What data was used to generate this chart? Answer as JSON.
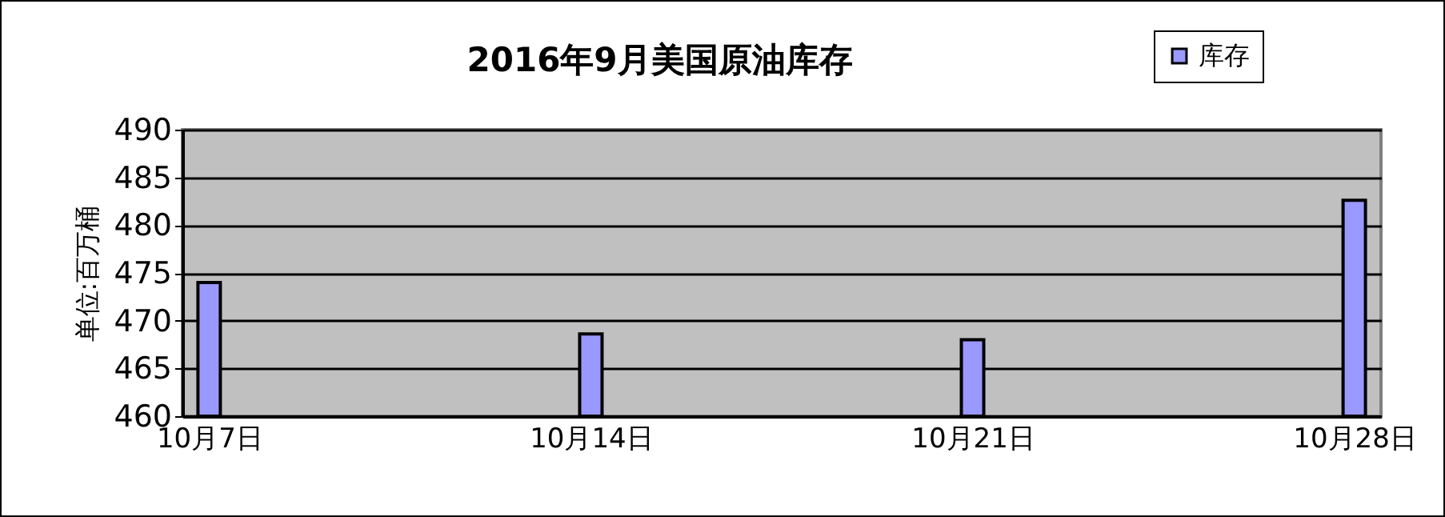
{
  "chart_data": {
    "type": "bar",
    "title": "2016年9月美国原油库存",
    "ylabel": "单位:百万桶",
    "categories": [
      "10月7日",
      "10月14日",
      "10月21日",
      "10月28日"
    ],
    "series": [
      {
        "name": "库存",
        "color": "#9999ff",
        "values": [
          474.0,
          468.6,
          468.0,
          482.6
        ]
      }
    ],
    "ylim": [
      460,
      490
    ],
    "yticks": [
      460,
      465,
      470,
      475,
      480,
      485,
      490
    ],
    "grid": "y",
    "legend": "top right"
  }
}
